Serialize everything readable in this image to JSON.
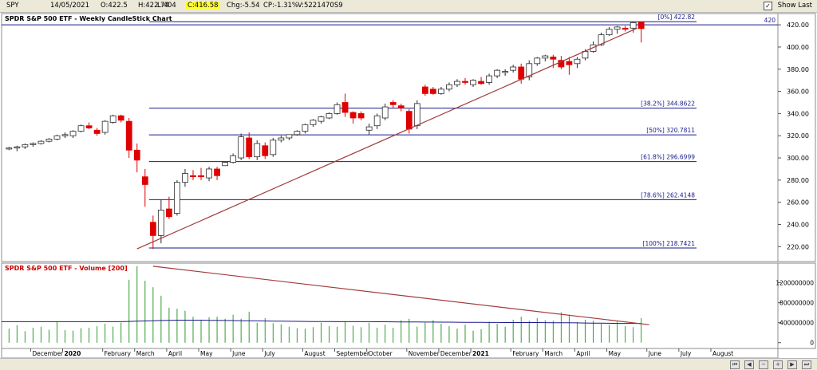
{
  "quote_bar": {
    "symbol": "SPY",
    "date": "14/05/2021",
    "open": "O:422.5",
    "high": "H:422.74",
    "low": "L:404",
    "close": "C:416.58",
    "change": "Chg:-5.54",
    "change_pct": "CP:-1.31%",
    "volume": "V:5221470S9",
    "show_last_label": "Show Last",
    "show_last_checked": true
  },
  "price_panel": {
    "title": "SPDR S&P 500 ETF - Weekly CandleStick Chart",
    "right_marker": "420"
  },
  "volume_panel": {
    "title": "SPDR S&P 500 ETF - Volume [200]"
  },
  "colors": {
    "up": "#16b416",
    "down": "#e00000",
    "fib_line": "#1a1a8c",
    "trend_line": "#a13b3b",
    "volume_bar": "#2e9e2e",
    "volume_ma": "#1a1a8c",
    "close_highlight": "#ffff33"
  },
  "chart_data": [
    {
      "type": "candlestick",
      "title": "SPDR S&P 500 ETF - Weekly CandleStick Chart",
      "y_axis": {
        "ticks": [
          220,
          240,
          260,
          280,
          300,
          320,
          340,
          360,
          380,
          400,
          420
        ],
        "ylim": [
          208,
          428
        ]
      },
      "x_axis": {
        "labels": [
          "December",
          "2020",
          "February",
          "March",
          "April",
          "May",
          "June",
          "July",
          "August",
          "September",
          "October",
          "November",
          "December",
          "2021",
          "February",
          "March",
          "April",
          "May",
          "June",
          "July",
          "August"
        ],
        "label_week_index": [
          3,
          7,
          12,
          16,
          20,
          24,
          28,
          32,
          37,
          41,
          45,
          50,
          54,
          58,
          63,
          67,
          71,
          75,
          80,
          84,
          88
        ],
        "bold_labels": [
          "2020",
          "2021"
        ]
      },
      "fibonacci_levels": [
        {
          "label": "[0%] 422.82",
          "value": 422.82
        },
        {
          "label": "[38.2%] 344.8622",
          "value": 344.8622
        },
        {
          "label": "[50%] 320.7811",
          "value": 320.7811
        },
        {
          "label": "[61.8%] 296.6999",
          "value": 296.6999
        },
        {
          "label": "[78.6%] 262.4148",
          "value": 262.4148
        },
        {
          "label": "[100%] 218.7421",
          "value": 218.7421
        }
      ],
      "horizontal_marker": {
        "label": "420",
        "value": 420
      },
      "trend_line": {
        "from": {
          "week": 16,
          "price": 218
        },
        "to": {
          "week": 78.5,
          "price": 417
        }
      },
      "candles": [
        {
          "week": 0,
          "o": 308,
          "h": 310,
          "l": 307,
          "c": 309
        },
        {
          "week": 1,
          "o": 309,
          "h": 311,
          "l": 306,
          "c": 310
        },
        {
          "week": 2,
          "o": 310,
          "h": 313,
          "l": 308,
          "c": 312
        },
        {
          "week": 3,
          "o": 312,
          "h": 314,
          "l": 310,
          "c": 313
        },
        {
          "week": 4,
          "o": 313,
          "h": 316,
          "l": 312,
          "c": 315
        },
        {
          "week": 5,
          "o": 315,
          "h": 318,
          "l": 314,
          "c": 317
        },
        {
          "week": 6,
          "o": 317,
          "h": 321,
          "l": 316,
          "c": 320
        },
        {
          "week": 7,
          "o": 320,
          "h": 323,
          "l": 318,
          "c": 321
        },
        {
          "week": 8,
          "o": 320,
          "h": 325,
          "l": 318,
          "c": 324
        },
        {
          "week": 9,
          "o": 324,
          "h": 330,
          "l": 323,
          "c": 329
        },
        {
          "week": 10,
          "o": 329,
          "h": 332,
          "l": 326,
          "c": 327
        },
        {
          "week": 11,
          "o": 325,
          "h": 327,
          "l": 320,
          "c": 322
        },
        {
          "week": 12,
          "o": 323,
          "h": 334,
          "l": 321,
          "c": 333
        },
        {
          "week": 13,
          "o": 332,
          "h": 339,
          "l": 331,
          "c": 338
        },
        {
          "week": 14,
          "o": 338,
          "h": 339,
          "l": 332,
          "c": 334
        },
        {
          "week": 15,
          "o": 333,
          "h": 336,
          "l": 300,
          "c": 307
        },
        {
          "week": 16,
          "o": 307,
          "h": 313,
          "l": 287,
          "c": 298
        },
        {
          "week": 17,
          "o": 283,
          "h": 290,
          "l": 256,
          "c": 276
        },
        {
          "week": 18,
          "o": 242,
          "h": 248,
          "l": 218,
          "c": 230
        },
        {
          "week": 19,
          "o": 230,
          "h": 262,
          "l": 223,
          "c": 253
        },
        {
          "week": 20,
          "o": 254,
          "h": 265,
          "l": 245,
          "c": 247
        },
        {
          "week": 21,
          "o": 250,
          "h": 280,
          "l": 248,
          "c": 278
        },
        {
          "week": 22,
          "o": 278,
          "h": 290,
          "l": 274,
          "c": 286
        },
        {
          "week": 23,
          "o": 284,
          "h": 289,
          "l": 280,
          "c": 283
        },
        {
          "week": 24,
          "o": 284,
          "h": 291,
          "l": 280,
          "c": 283
        },
        {
          "week": 25,
          "o": 282,
          "h": 292,
          "l": 279,
          "c": 290
        },
        {
          "week": 26,
          "o": 290,
          "h": 292,
          "l": 280,
          "c": 284
        },
        {
          "week": 27,
          "o": 293,
          "h": 297,
          "l": 293,
          "c": 296
        },
        {
          "week": 28,
          "o": 296,
          "h": 304,
          "l": 295,
          "c": 302
        },
        {
          "week": 29,
          "o": 300,
          "h": 322,
          "l": 298,
          "c": 319
        },
        {
          "week": 30,
          "o": 318,
          "h": 323,
          "l": 299,
          "c": 301
        },
        {
          "week": 31,
          "o": 301,
          "h": 316,
          "l": 298,
          "c": 313
        },
        {
          "week": 32,
          "o": 311,
          "h": 314,
          "l": 299,
          "c": 302
        },
        {
          "week": 33,
          "o": 303,
          "h": 318,
          "l": 301,
          "c": 316
        },
        {
          "week": 34,
          "o": 316,
          "h": 320,
          "l": 314,
          "c": 318
        },
        {
          "week": 35,
          "o": 318,
          "h": 321,
          "l": 316,
          "c": 321
        },
        {
          "week": 36,
          "o": 321,
          "h": 325,
          "l": 320,
          "c": 324
        },
        {
          "week": 37,
          "o": 324,
          "h": 331,
          "l": 322,
          "c": 330
        },
        {
          "week": 38,
          "o": 330,
          "h": 335,
          "l": 328,
          "c": 334
        },
        {
          "week": 39,
          "o": 333,
          "h": 338,
          "l": 331,
          "c": 337
        },
        {
          "week": 40,
          "o": 336,
          "h": 341,
          "l": 335,
          "c": 340
        },
        {
          "week": 41,
          "o": 340,
          "h": 350,
          "l": 339,
          "c": 348
        },
        {
          "week": 42,
          "o": 350,
          "h": 358,
          "l": 337,
          "c": 341
        },
        {
          "week": 43,
          "o": 341,
          "h": 342,
          "l": 331,
          "c": 336
        },
        {
          "week": 44,
          "o": 340,
          "h": 342,
          "l": 334,
          "c": 336
        },
        {
          "week": 45,
          "o": 325,
          "h": 331,
          "l": 321,
          "c": 328
        },
        {
          "week": 46,
          "o": 329,
          "h": 340,
          "l": 326,
          "c": 338
        },
        {
          "week": 47,
          "o": 336,
          "h": 349,
          "l": 334,
          "c": 346
        },
        {
          "week": 48,
          "o": 350,
          "h": 352,
          "l": 345,
          "c": 348
        },
        {
          "week": 49,
          "o": 347,
          "h": 349,
          "l": 342,
          "c": 345
        },
        {
          "week": 50,
          "o": 342,
          "h": 344,
          "l": 322,
          "c": 326
        },
        {
          "week": 51,
          "o": 329,
          "h": 352,
          "l": 326,
          "c": 349
        },
        {
          "week": 52,
          "o": 364,
          "h": 366,
          "l": 356,
          "c": 358
        },
        {
          "week": 53,
          "o": 362,
          "h": 364,
          "l": 357,
          "c": 358
        },
        {
          "week": 54,
          "o": 358,
          "h": 364,
          "l": 357,
          "c": 362
        },
        {
          "week": 55,
          "o": 362,
          "h": 368,
          "l": 360,
          "c": 366
        },
        {
          "week": 56,
          "o": 366,
          "h": 371,
          "l": 364,
          "c": 369
        },
        {
          "week": 57,
          "o": 369,
          "h": 372,
          "l": 366,
          "c": 368
        },
        {
          "week": 58,
          "o": 366,
          "h": 371,
          "l": 364,
          "c": 370
        },
        {
          "week": 59,
          "o": 369,
          "h": 373,
          "l": 366,
          "c": 367
        },
        {
          "week": 60,
          "o": 368,
          "h": 376,
          "l": 366,
          "c": 374
        },
        {
          "week": 61,
          "o": 374,
          "h": 380,
          "l": 372,
          "c": 379
        },
        {
          "week": 62,
          "o": 377,
          "h": 380,
          "l": 374,
          "c": 378
        },
        {
          "week": 63,
          "o": 379,
          "h": 384,
          "l": 377,
          "c": 382
        },
        {
          "week": 64,
          "o": 382,
          "h": 385,
          "l": 367,
          "c": 371
        },
        {
          "week": 65,
          "o": 373,
          "h": 388,
          "l": 370,
          "c": 385
        },
        {
          "week": 66,
          "o": 385,
          "h": 391,
          "l": 383,
          "c": 390
        },
        {
          "week": 67,
          "o": 390,
          "h": 393,
          "l": 387,
          "c": 392
        },
        {
          "week": 68,
          "o": 391,
          "h": 393,
          "l": 381,
          "c": 389
        },
        {
          "week": 69,
          "o": 388,
          "h": 392,
          "l": 380,
          "c": 382
        },
        {
          "week": 70,
          "o": 387,
          "h": 391,
          "l": 375,
          "c": 384
        },
        {
          "week": 71,
          "o": 385,
          "h": 391,
          "l": 381,
          "c": 389
        },
        {
          "week": 72,
          "o": 390,
          "h": 398,
          "l": 388,
          "c": 396
        },
        {
          "week": 73,
          "o": 396,
          "h": 405,
          "l": 395,
          "c": 402
        },
        {
          "week": 74,
          "o": 402,
          "h": 413,
          "l": 401,
          "c": 411
        },
        {
          "week": 75,
          "o": 411,
          "h": 418,
          "l": 410,
          "c": 416
        },
        {
          "week": 76,
          "o": 416,
          "h": 419,
          "l": 412,
          "c": 418
        },
        {
          "week": 77,
          "o": 417,
          "h": 419,
          "l": 414,
          "c": 416
        },
        {
          "week": 78,
          "o": 417,
          "h": 423,
          "l": 413,
          "c": 422
        },
        {
          "week": 79,
          "o": 422.5,
          "h": 422.74,
          "l": 404,
          "c": 416.58
        }
      ]
    },
    {
      "type": "bar",
      "title": "SPDR S&P 500 ETF - Volume [200]",
      "y_axis": {
        "ticks": [
          0,
          400000000,
          800000000,
          1200000000
        ],
        "tick_labels": [
          "0",
          "400000000",
          "800000000",
          "1200000000"
        ],
        "ylim": [
          -100000000,
          1560000000
        ]
      },
      "series": [
        {
          "kind": "bar",
          "values": [
            280000000,
            350000000,
            230000000,
            300000000,
            320000000,
            260000000,
            420000000,
            250000000,
            240000000,
            290000000,
            300000000,
            330000000,
            380000000,
            320000000,
            400000000,
            1260000000,
            1530000000,
            1240000000,
            1110000000,
            940000000,
            700000000,
            680000000,
            640000000,
            520000000,
            460000000,
            510000000,
            520000000,
            480000000,
            560000000,
            480000000,
            620000000,
            400000000,
            490000000,
            390000000,
            370000000,
            320000000,
            290000000,
            280000000,
            310000000,
            400000000,
            330000000,
            320000000,
            430000000,
            340000000,
            310000000,
            400000000,
            300000000,
            360000000,
            300000000,
            450000000,
            480000000,
            320000000,
            400000000,
            450000000,
            380000000,
            330000000,
            280000000,
            360000000,
            240000000,
            270000000,
            420000000,
            380000000,
            320000000,
            460000000,
            520000000,
            440000000,
            490000000,
            450000000,
            440000000,
            610000000,
            560000000,
            410000000,
            460000000,
            440000000,
            380000000,
            360000000,
            420000000,
            330000000,
            310000000,
            490000000
          ]
        },
        {
          "kind": "line",
          "values": [
            420000000,
            420000000,
            420000000,
            420000000,
            420000000,
            420000000,
            420000000,
            420000000,
            420000000,
            420000000,
            420000000,
            420000000,
            420000000,
            420000000,
            420000000,
            425000000,
            430000000,
            435000000,
            440000000,
            445000000,
            448000000,
            450000000,
            450000000,
            450000000,
            450000000,
            448000000,
            446000000,
            444000000,
            442000000,
            440000000,
            438000000,
            436000000,
            434000000,
            432000000,
            430000000,
            428000000,
            426000000,
            425000000,
            424000000,
            423000000,
            422000000,
            421000000,
            420000000,
            420000000,
            420000000,
            420000000,
            419000000,
            418000000,
            417000000,
            416000000,
            415000000,
            414000000,
            413000000,
            412000000,
            411000000,
            410000000,
            409000000,
            408000000,
            407000000,
            406000000,
            405000000,
            404000000,
            403000000,
            402000000,
            402000000,
            402000000,
            402000000,
            401000000,
            400000000,
            399000000,
            398000000,
            396000000,
            394000000,
            392000000,
            390000000,
            388000000,
            386000000,
            385000000,
            385000000,
            385000000
          ]
        }
      ],
      "trend_line": {
        "from": {
          "week": 18,
          "value": 1530000000
        },
        "to": {
          "week": 80,
          "value": 360000000
        }
      }
    }
  ]
}
